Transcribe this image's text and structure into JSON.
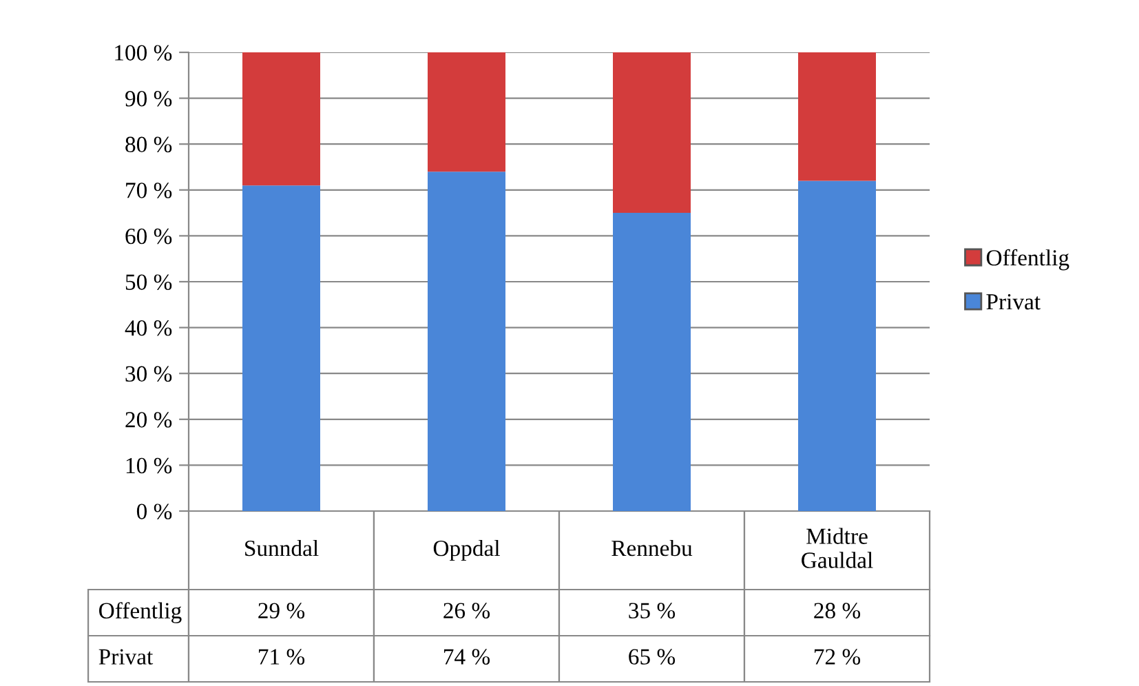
{
  "chart_data": {
    "type": "bar",
    "stacked": true,
    "categories": [
      "Sunndal",
      "Oppdal",
      "Rennebu",
      "Midtre\nGauldal"
    ],
    "series": [
      {
        "name": "Privat",
        "color": "#4a86d8",
        "values": [
          71,
          74,
          65,
          72
        ],
        "value_labels": [
          "71 %",
          "74 %",
          "65 %",
          "72 %"
        ]
      },
      {
        "name": "Offentlig",
        "color": "#d33c3c",
        "values": [
          29,
          26,
          35,
          28
        ],
        "value_labels": [
          "29 %",
          "26 %",
          "35 %",
          "28 %"
        ]
      }
    ],
    "ylim": [
      0,
      100
    ],
    "yticks": [
      {
        "value": 0,
        "label": "0 %"
      },
      {
        "value": 10,
        "label": "10 %"
      },
      {
        "value": 20,
        "label": "20 %"
      },
      {
        "value": 30,
        "label": "30 %"
      },
      {
        "value": 40,
        "label": "40 %"
      },
      {
        "value": 50,
        "label": "50 %"
      },
      {
        "value": 60,
        "label": "60 %"
      },
      {
        "value": 70,
        "label": "70 %"
      },
      {
        "value": 80,
        "label": "80 %"
      },
      {
        "value": 90,
        "label": "90 %"
      },
      {
        "value": 100,
        "label": "100 %"
      }
    ],
    "grid": "y",
    "legend": "right"
  }
}
